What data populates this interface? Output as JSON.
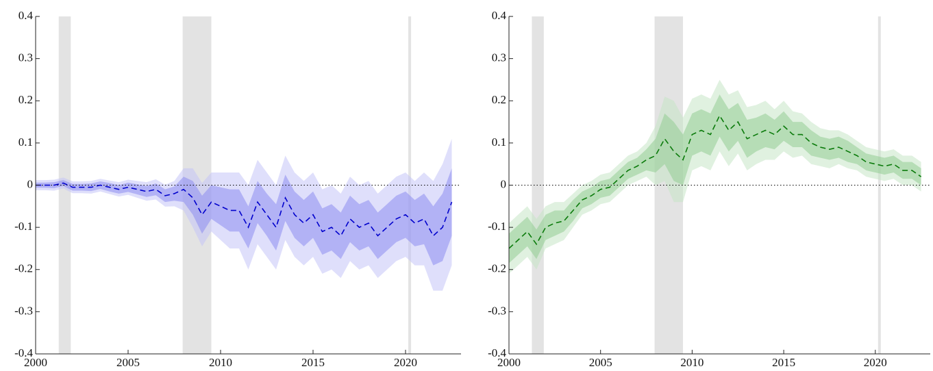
{
  "chart_data": [
    {
      "type": "line",
      "color": "#0000cc",
      "inner_color": "#8c8cf0",
      "outer_color": "#c4c4f8",
      "shade_color": "#e3e3e3",
      "xlim": [
        2000,
        2023
      ],
      "ylim": [
        -0.4,
        0.4
      ],
      "xticks": [
        2000,
        2005,
        2010,
        2015,
        2020
      ],
      "yticks": [
        -0.4,
        -0.3,
        -0.2,
        -0.1,
        0,
        0.1,
        0.2,
        0.3,
        0.4
      ],
      "zero_line": true,
      "shaded_regions": [
        [
          2001.25,
          2001.9
        ],
        [
          2007.95,
          2009.5
        ],
        [
          2020.15,
          2020.3
        ]
      ],
      "x": [
        2000,
        2000.5,
        2001,
        2001.5,
        2002,
        2002.5,
        2003,
        2003.5,
        2004,
        2004.5,
        2005,
        2005.5,
        2006,
        2006.5,
        2007,
        2007.5,
        2008,
        2008.5,
        2009,
        2009.5,
        2010,
        2010.5,
        2011,
        2011.5,
        2012,
        2012.5,
        2013,
        2013.5,
        2014,
        2014.5,
        2015,
        2015.5,
        2016,
        2016.5,
        2017,
        2017.5,
        2018,
        2018.5,
        2019,
        2019.5,
        2020,
        2020.5,
        2021,
        2021.5,
        2022,
        2022.5
      ],
      "values": [
        0,
        0,
        0,
        0.005,
        -0.005,
        -0.005,
        -0.005,
        0,
        -0.005,
        -0.01,
        -0.005,
        -0.01,
        -0.015,
        -0.01,
        -0.025,
        -0.02,
        -0.01,
        -0.03,
        -0.07,
        -0.04,
        -0.05,
        -0.06,
        -0.06,
        -0.1,
        -0.04,
        -0.07,
        -0.1,
        -0.03,
        -0.07,
        -0.09,
        -0.07,
        -0.11,
        -0.1,
        -0.12,
        -0.08,
        -0.1,
        -0.09,
        -0.12,
        -0.1,
        -0.08,
        -0.07,
        -0.09,
        -0.08,
        -0.12,
        -0.1,
        -0.04
      ],
      "inner_error": [
        0.006,
        0.006,
        0.007,
        0.007,
        0.008,
        0.008,
        0.009,
        0.009,
        0.01,
        0.01,
        0.011,
        0.012,
        0.013,
        0.014,
        0.015,
        0.017,
        0.03,
        0.04,
        0.045,
        0.04,
        0.045,
        0.05,
        0.05,
        0.05,
        0.05,
        0.05,
        0.055,
        0.055,
        0.055,
        0.055,
        0.055,
        0.055,
        0.055,
        0.055,
        0.055,
        0.055,
        0.055,
        0.055,
        0.055,
        0.055,
        0.055,
        0.055,
        0.06,
        0.07,
        0.08,
        0.08
      ],
      "outer_error": [
        0.012,
        0.012,
        0.013,
        0.013,
        0.014,
        0.014,
        0.015,
        0.015,
        0.016,
        0.017,
        0.018,
        0.02,
        0.022,
        0.024,
        0.026,
        0.03,
        0.05,
        0.07,
        0.075,
        0.07,
        0.08,
        0.09,
        0.09,
        0.1,
        0.1,
        0.1,
        0.1,
        0.1,
        0.1,
        0.1,
        0.1,
        0.1,
        0.1,
        0.1,
        0.1,
        0.1,
        0.1,
        0.1,
        0.1,
        0.1,
        0.1,
        0.1,
        0.11,
        0.13,
        0.15,
        0.15
      ]
    },
    {
      "type": "line",
      "color": "#0a7a0a",
      "inner_color": "#93cc93",
      "outer_color": "#c6e5c6",
      "shade_color": "#e3e3e3",
      "xlim": [
        2000,
        2023
      ],
      "ylim": [
        -0.4,
        0.4
      ],
      "xticks": [
        2000,
        2005,
        2010,
        2015,
        2020
      ],
      "yticks": [
        -0.4,
        -0.3,
        -0.2,
        -0.1,
        0,
        0.1,
        0.2,
        0.3,
        0.4
      ],
      "zero_line": true,
      "shaded_regions": [
        [
          2001.25,
          2001.9
        ],
        [
          2007.95,
          2009.5
        ],
        [
          2020.15,
          2020.3
        ]
      ],
      "x": [
        2000,
        2000.5,
        2001,
        2001.5,
        2002,
        2002.5,
        2003,
        2003.5,
        2004,
        2004.5,
        2005,
        2005.5,
        2006,
        2006.5,
        2007,
        2007.5,
        2008,
        2008.5,
        2009,
        2009.5,
        2010,
        2010.5,
        2011,
        2011.5,
        2012,
        2012.5,
        2013,
        2013.5,
        2014,
        2014.5,
        2015,
        2015.5,
        2016,
        2016.5,
        2017,
        2017.5,
        2018,
        2018.5,
        2019,
        2019.5,
        2020,
        2020.5,
        2021,
        2021.5,
        2022,
        2022.5
      ],
      "values": [
        -0.15,
        -0.13,
        -0.11,
        -0.14,
        -0.1,
        -0.09,
        -0.085,
        -0.06,
        -0.035,
        -0.025,
        -0.01,
        -0.005,
        0.015,
        0.035,
        0.045,
        0.06,
        0.07,
        0.11,
        0.08,
        0.06,
        0.12,
        0.13,
        0.12,
        0.165,
        0.13,
        0.15,
        0.11,
        0.12,
        0.13,
        0.12,
        0.14,
        0.12,
        0.12,
        0.1,
        0.09,
        0.085,
        0.09,
        0.08,
        0.07,
        0.055,
        0.05,
        0.045,
        0.05,
        0.035,
        0.035,
        0.02
      ],
      "inner_error": [
        0.035,
        0.035,
        0.035,
        0.035,
        0.03,
        0.03,
        0.025,
        0.025,
        0.02,
        0.02,
        0.02,
        0.02,
        0.02,
        0.02,
        0.02,
        0.025,
        0.04,
        0.06,
        0.07,
        0.06,
        0.05,
        0.05,
        0.05,
        0.05,
        0.05,
        0.045,
        0.045,
        0.04,
        0.04,
        0.035,
        0.035,
        0.03,
        0.03,
        0.03,
        0.025,
        0.025,
        0.025,
        0.025,
        0.02,
        0.02,
        0.02,
        0.02,
        0.02,
        0.02,
        0.02,
        0.02
      ],
      "outer_error": [
        0.06,
        0.06,
        0.06,
        0.06,
        0.05,
        0.05,
        0.045,
        0.04,
        0.035,
        0.035,
        0.035,
        0.035,
        0.035,
        0.035,
        0.035,
        0.04,
        0.07,
        0.1,
        0.12,
        0.1,
        0.085,
        0.085,
        0.085,
        0.085,
        0.085,
        0.075,
        0.075,
        0.07,
        0.07,
        0.06,
        0.06,
        0.055,
        0.05,
        0.05,
        0.045,
        0.045,
        0.04,
        0.04,
        0.035,
        0.035,
        0.035,
        0.035,
        0.035,
        0.035,
        0.035,
        0.035
      ]
    }
  ]
}
